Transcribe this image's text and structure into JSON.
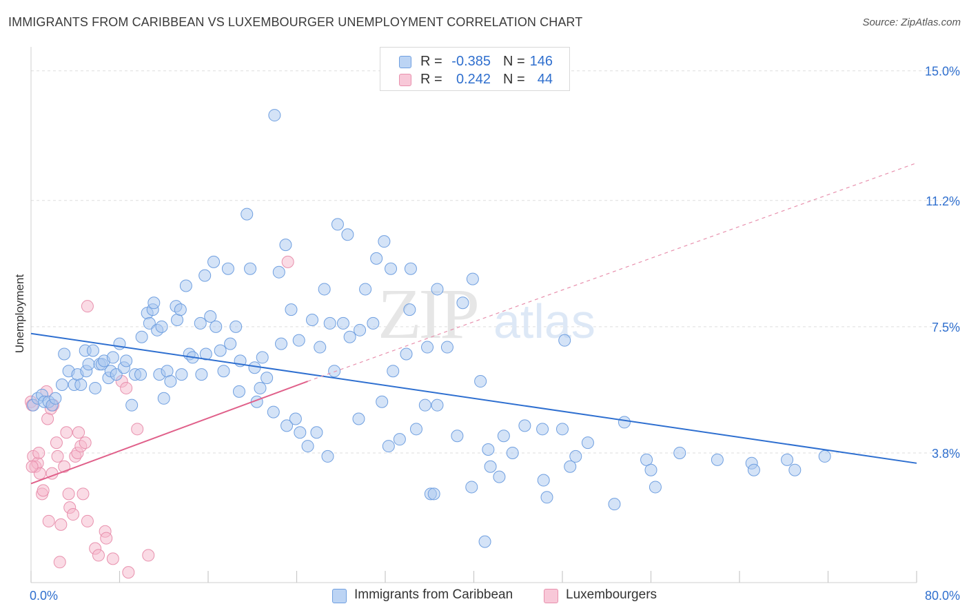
{
  "title": "IMMIGRANTS FROM CARIBBEAN VS LUXEMBOURGER UNEMPLOYMENT CORRELATION CHART",
  "source": "Source: ZipAtlas.com",
  "legend": {
    "rows": [
      {
        "r_label": "R =",
        "r_value": "-0.385",
        "n_label": "N =",
        "n_value": "146"
      },
      {
        "r_label": "R =",
        "r_value": "0.242",
        "n_label": "N =",
        "n_value": "44"
      }
    ]
  },
  "bottom_legend": [
    "Immigrants from Caribbean",
    "Luxembourgers"
  ],
  "colors": {
    "blue_fill": "#a9c7f0",
    "blue_stroke": "#6f9fe0",
    "blue_line": "#2e6fd0",
    "pink_fill": "#f5b8cc",
    "pink_stroke": "#e890ad",
    "pink_line": "#e0608a",
    "axis_label": "#2f6fce",
    "grid": "#dddddd"
  },
  "watermark": {
    "zip": "ZIP",
    "atlas": "atlas"
  },
  "chart_data": {
    "type": "scatter",
    "title": "IMMIGRANTS FROM CARIBBEAN VS LUXEMBOURGER UNEMPLOYMENT CORRELATION CHART",
    "xlabel": "",
    "ylabel": "Unemployment",
    "xlim": [
      0,
      80
    ],
    "ylim": [
      0,
      15.5
    ],
    "x_tick_labels": [
      "0.0%",
      "80.0%"
    ],
    "y_ticks": [
      3.8,
      7.5,
      11.2,
      15.0
    ],
    "y_tick_labels": [
      "3.8%",
      "7.5%",
      "11.2%",
      "15.0%"
    ],
    "series": [
      {
        "name": "Immigrants from Caribbean",
        "color": "blue",
        "trend": {
          "x": [
            0,
            80
          ],
          "y": [
            7.3,
            3.5
          ]
        },
        "points": [
          [
            0.2,
            5.2
          ],
          [
            0.6,
            5.4
          ],
          [
            1.0,
            5.5
          ],
          [
            1.2,
            5.3
          ],
          [
            1.6,
            5.3
          ],
          [
            1.9,
            5.2
          ],
          [
            2.2,
            5.4
          ],
          [
            2.8,
            5.8
          ],
          [
            3.0,
            6.7
          ],
          [
            3.4,
            6.2
          ],
          [
            3.9,
            5.8
          ],
          [
            4.2,
            6.1
          ],
          [
            4.5,
            5.8
          ],
          [
            4.9,
            6.8
          ],
          [
            5.0,
            6.2
          ],
          [
            5.2,
            6.4
          ],
          [
            5.6,
            6.8
          ],
          [
            5.8,
            5.7
          ],
          [
            6.2,
            6.4
          ],
          [
            6.4,
            6.4
          ],
          [
            6.6,
            6.5
          ],
          [
            7.0,
            6.0
          ],
          [
            7.2,
            6.2
          ],
          [
            7.4,
            6.6
          ],
          [
            7.7,
            6.1
          ],
          [
            8.0,
            7.0
          ],
          [
            8.4,
            6.3
          ],
          [
            8.6,
            6.5
          ],
          [
            9.1,
            5.2
          ],
          [
            9.4,
            6.1
          ],
          [
            9.9,
            6.1
          ],
          [
            10.0,
            7.2
          ],
          [
            10.5,
            7.9
          ],
          [
            10.7,
            7.6
          ],
          [
            11.0,
            8.0
          ],
          [
            11.1,
            8.2
          ],
          [
            11.4,
            7.4
          ],
          [
            11.6,
            6.1
          ],
          [
            11.8,
            7.5
          ],
          [
            12.0,
            5.4
          ],
          [
            12.3,
            6.2
          ],
          [
            12.6,
            5.9
          ],
          [
            13.1,
            8.1
          ],
          [
            13.2,
            7.7
          ],
          [
            13.5,
            8.0
          ],
          [
            13.6,
            6.1
          ],
          [
            14.0,
            8.7
          ],
          [
            14.3,
            6.7
          ],
          [
            14.6,
            6.6
          ],
          [
            15.3,
            7.6
          ],
          [
            15.4,
            6.1
          ],
          [
            15.7,
            9.0
          ],
          [
            15.8,
            6.7
          ],
          [
            16.2,
            7.8
          ],
          [
            16.5,
            9.4
          ],
          [
            16.7,
            7.5
          ],
          [
            17.1,
            6.8
          ],
          [
            17.4,
            6.2
          ],
          [
            17.8,
            9.2
          ],
          [
            18.0,
            7.0
          ],
          [
            18.5,
            7.5
          ],
          [
            18.8,
            5.6
          ],
          [
            18.9,
            6.5
          ],
          [
            19.5,
            10.8
          ],
          [
            19.8,
            9.2
          ],
          [
            20.2,
            6.3
          ],
          [
            20.4,
            5.3
          ],
          [
            20.7,
            5.7
          ],
          [
            20.9,
            6.6
          ],
          [
            21.3,
            6.0
          ],
          [
            21.9,
            5.0
          ],
          [
            22.0,
            13.7
          ],
          [
            22.4,
            9.1
          ],
          [
            22.6,
            7.0
          ],
          [
            23.0,
            9.9
          ],
          [
            23.1,
            4.6
          ],
          [
            23.5,
            8.0
          ],
          [
            23.9,
            4.8
          ],
          [
            24.2,
            7.1
          ],
          [
            24.3,
            4.4
          ],
          [
            25.0,
            4.0
          ],
          [
            25.4,
            7.7
          ],
          [
            25.8,
            4.4
          ],
          [
            26.1,
            6.9
          ],
          [
            26.5,
            8.6
          ],
          [
            26.8,
            3.7
          ],
          [
            27.0,
            7.6
          ],
          [
            27.4,
            6.2
          ],
          [
            27.7,
            10.5
          ],
          [
            28.2,
            7.6
          ],
          [
            28.6,
            10.2
          ],
          [
            28.8,
            7.2
          ],
          [
            29.6,
            4.8
          ],
          [
            29.7,
            7.4
          ],
          [
            30.2,
            8.6
          ],
          [
            30.9,
            7.6
          ],
          [
            31.2,
            9.5
          ],
          [
            31.7,
            5.3
          ],
          [
            31.9,
            10.0
          ],
          [
            32.3,
            4.0
          ],
          [
            32.5,
            9.2
          ],
          [
            32.7,
            6.2
          ],
          [
            33.3,
            4.2
          ],
          [
            33.9,
            6.7
          ],
          [
            34.2,
            8.0
          ],
          [
            34.3,
            9.2
          ],
          [
            34.8,
            4.5
          ],
          [
            35.6,
            5.2
          ],
          [
            35.8,
            6.9
          ],
          [
            36.1,
            2.6
          ],
          [
            36.4,
            2.6
          ],
          [
            36.7,
            8.6
          ],
          [
            36.7,
            5.2
          ],
          [
            37.6,
            6.9
          ],
          [
            38.5,
            4.3
          ],
          [
            39.0,
            8.2
          ],
          [
            39.8,
            2.8
          ],
          [
            39.9,
            8.9
          ],
          [
            40.6,
            5.9
          ],
          [
            41.0,
            1.2
          ],
          [
            41.3,
            3.9
          ],
          [
            41.5,
            3.4
          ],
          [
            42.3,
            3.1
          ],
          [
            42.7,
            4.3
          ],
          [
            43.5,
            3.8
          ],
          [
            44.6,
            4.6
          ],
          [
            46.2,
            4.5
          ],
          [
            46.3,
            3.0
          ],
          [
            46.6,
            2.5
          ],
          [
            48.0,
            4.5
          ],
          [
            48.2,
            7.1
          ],
          [
            48.7,
            3.4
          ],
          [
            49.2,
            3.7
          ],
          [
            50.3,
            4.1
          ],
          [
            52.7,
            2.3
          ],
          [
            53.6,
            4.7
          ],
          [
            55.6,
            3.6
          ],
          [
            56.0,
            3.3
          ],
          [
            56.4,
            2.8
          ],
          [
            58.6,
            3.8
          ],
          [
            62.0,
            3.6
          ],
          [
            65.1,
            3.5
          ],
          [
            65.3,
            3.3
          ],
          [
            68.3,
            3.6
          ],
          [
            69.0,
            3.3
          ],
          [
            71.7,
            3.7
          ]
        ]
      },
      {
        "name": "Luxembourgers",
        "color": "pink",
        "trend": {
          "x": [
            0,
            25
          ],
          "y": [
            2.9,
            5.9
          ]
        },
        "trend_extension": {
          "x": [
            25,
            80
          ],
          "y": [
            5.9,
            12.3
          ]
        },
        "points": [
          [
            0.0,
            5.3
          ],
          [
            0.1,
            5.2
          ],
          [
            0.2,
            3.7
          ],
          [
            0.4,
            3.4
          ],
          [
            0.6,
            3.5
          ],
          [
            0.7,
            3.8
          ],
          [
            0.8,
            3.2
          ],
          [
            1.0,
            2.6
          ],
          [
            1.1,
            2.7
          ],
          [
            1.4,
            5.6
          ],
          [
            1.5,
            4.8
          ],
          [
            1.6,
            1.8
          ],
          [
            1.8,
            5.1
          ],
          [
            1.9,
            3.2
          ],
          [
            2.0,
            5.2
          ],
          [
            2.3,
            4.1
          ],
          [
            2.4,
            3.7
          ],
          [
            2.6,
            0.6
          ],
          [
            2.7,
            1.7
          ],
          [
            3.0,
            3.4
          ],
          [
            3.2,
            4.4
          ],
          [
            3.4,
            2.6
          ],
          [
            3.5,
            2.2
          ],
          [
            3.8,
            2.0
          ],
          [
            4.0,
            3.7
          ],
          [
            4.2,
            3.8
          ],
          [
            4.3,
            4.4
          ],
          [
            4.5,
            4.0
          ],
          [
            4.7,
            2.6
          ],
          [
            4.9,
            4.1
          ],
          [
            5.1,
            8.1
          ],
          [
            5.1,
            1.8
          ],
          [
            5.8,
            1.0
          ],
          [
            6.1,
            0.8
          ],
          [
            6.7,
            1.5
          ],
          [
            6.8,
            1.3
          ],
          [
            7.4,
            0.7
          ],
          [
            8.2,
            5.9
          ],
          [
            8.6,
            5.7
          ],
          [
            8.8,
            0.3
          ],
          [
            9.6,
            4.5
          ],
          [
            10.6,
            0.8
          ],
          [
            23.2,
            9.4
          ],
          [
            0.1,
            3.4
          ]
        ]
      }
    ]
  }
}
